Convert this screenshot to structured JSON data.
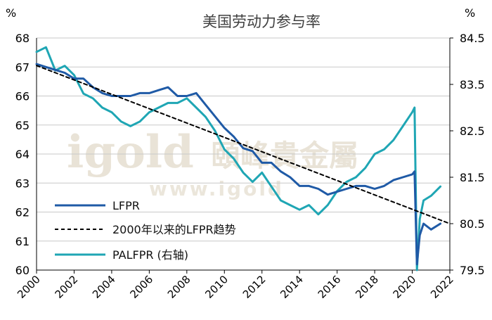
{
  "chart_data": {
    "type": "line",
    "title": "美国劳动力参与率",
    "left_unit": "%",
    "right_unit": "%",
    "x_ticks": [
      "2000",
      "2002",
      "2004",
      "2006",
      "2008",
      "2010",
      "2012",
      "2014",
      "2016",
      "2018",
      "2020",
      "2022"
    ],
    "xlim": [
      2000,
      2022
    ],
    "ylim_left": [
      60,
      68
    ],
    "ylim_right": [
      79.5,
      84.5
    ],
    "y_left_ticks": [
      "60",
      "61",
      "62",
      "63",
      "64",
      "65",
      "66",
      "67",
      "68"
    ],
    "y_right_ticks": [
      "79.5",
      "80.5",
      "81.5",
      "82.5",
      "83.5",
      "84.5"
    ],
    "grid": "horizontal",
    "legend_position": "lower-left",
    "watermark": {
      "brand": "igold",
      "cn": "頤峰貴金屬",
      "url": "www.igold"
    },
    "series": [
      {
        "name": "LFPR",
        "axis": "left",
        "color": "#1f5aa6",
        "points": [
          [
            2000.0,
            67.1
          ],
          [
            2000.5,
            67.0
          ],
          [
            2001.0,
            66.9
          ],
          [
            2001.5,
            66.8
          ],
          [
            2002.0,
            66.6
          ],
          [
            2002.5,
            66.6
          ],
          [
            2003.0,
            66.3
          ],
          [
            2003.5,
            66.1
          ],
          [
            2004.0,
            66.0
          ],
          [
            2004.5,
            66.0
          ],
          [
            2005.0,
            66.0
          ],
          [
            2005.5,
            66.1
          ],
          [
            2006.0,
            66.1
          ],
          [
            2006.5,
            66.2
          ],
          [
            2007.0,
            66.3
          ],
          [
            2007.5,
            66.0
          ],
          [
            2008.0,
            66.0
          ],
          [
            2008.5,
            66.1
          ],
          [
            2009.0,
            65.7
          ],
          [
            2009.5,
            65.3
          ],
          [
            2010.0,
            64.9
          ],
          [
            2010.5,
            64.6
          ],
          [
            2011.0,
            64.2
          ],
          [
            2011.5,
            64.1
          ],
          [
            2012.0,
            63.7
          ],
          [
            2012.5,
            63.7
          ],
          [
            2013.0,
            63.4
          ],
          [
            2013.5,
            63.2
          ],
          [
            2014.0,
            62.9
          ],
          [
            2014.5,
            62.9
          ],
          [
            2015.0,
            62.8
          ],
          [
            2015.5,
            62.6
          ],
          [
            2016.0,
            62.7
          ],
          [
            2016.5,
            62.8
          ],
          [
            2017.0,
            62.9
          ],
          [
            2017.5,
            62.9
          ],
          [
            2018.0,
            62.8
          ],
          [
            2018.5,
            62.9
          ],
          [
            2019.0,
            63.1
          ],
          [
            2019.5,
            63.2
          ],
          [
            2020.0,
            63.3
          ],
          [
            2020.12,
            63.4
          ],
          [
            2020.25,
            60.2
          ],
          [
            2020.4,
            61.2
          ],
          [
            2020.6,
            61.6
          ],
          [
            2021.0,
            61.4
          ],
          [
            2021.5,
            61.6
          ]
        ]
      },
      {
        "name": "2000年以来的LFPR趋势",
        "axis": "left",
        "style": "dashed",
        "color": "#000000",
        "points": [
          [
            2000.0,
            67.05
          ],
          [
            2022.0,
            61.6
          ]
        ]
      },
      {
        "name": "PALFPR (右轴)",
        "axis": "right",
        "color": "#1fa6b4",
        "points": [
          [
            2000.0,
            84.2
          ],
          [
            2000.5,
            84.3
          ],
          [
            2001.0,
            83.8
          ],
          [
            2001.5,
            83.9
          ],
          [
            2002.0,
            83.7
          ],
          [
            2002.5,
            83.3
          ],
          [
            2003.0,
            83.2
          ],
          [
            2003.5,
            83.0
          ],
          [
            2004.0,
            82.9
          ],
          [
            2004.5,
            82.7
          ],
          [
            2005.0,
            82.6
          ],
          [
            2005.5,
            82.7
          ],
          [
            2006.0,
            82.9
          ],
          [
            2006.5,
            83.0
          ],
          [
            2007.0,
            83.1
          ],
          [
            2007.5,
            83.1
          ],
          [
            2008.0,
            83.2
          ],
          [
            2008.5,
            83.0
          ],
          [
            2009.0,
            82.8
          ],
          [
            2009.5,
            82.5
          ],
          [
            2010.0,
            82.1
          ],
          [
            2010.5,
            81.9
          ],
          [
            2011.0,
            81.6
          ],
          [
            2011.5,
            81.4
          ],
          [
            2012.0,
            81.6
          ],
          [
            2012.5,
            81.3
          ],
          [
            2013.0,
            81.0
          ],
          [
            2013.5,
            80.9
          ],
          [
            2014.0,
            80.8
          ],
          [
            2014.5,
            80.9
          ],
          [
            2015.0,
            80.7
          ],
          [
            2015.5,
            80.9
          ],
          [
            2016.0,
            81.2
          ],
          [
            2016.5,
            81.4
          ],
          [
            2017.0,
            81.5
          ],
          [
            2017.5,
            81.7
          ],
          [
            2018.0,
            82.0
          ],
          [
            2018.5,
            82.1
          ],
          [
            2019.0,
            82.3
          ],
          [
            2019.5,
            82.6
          ],
          [
            2020.0,
            82.9
          ],
          [
            2020.12,
            83.0
          ],
          [
            2020.25,
            79.5
          ],
          [
            2020.4,
            80.6
          ],
          [
            2020.6,
            81.0
          ],
          [
            2021.0,
            81.1
          ],
          [
            2021.5,
            81.3
          ]
        ]
      }
    ]
  }
}
